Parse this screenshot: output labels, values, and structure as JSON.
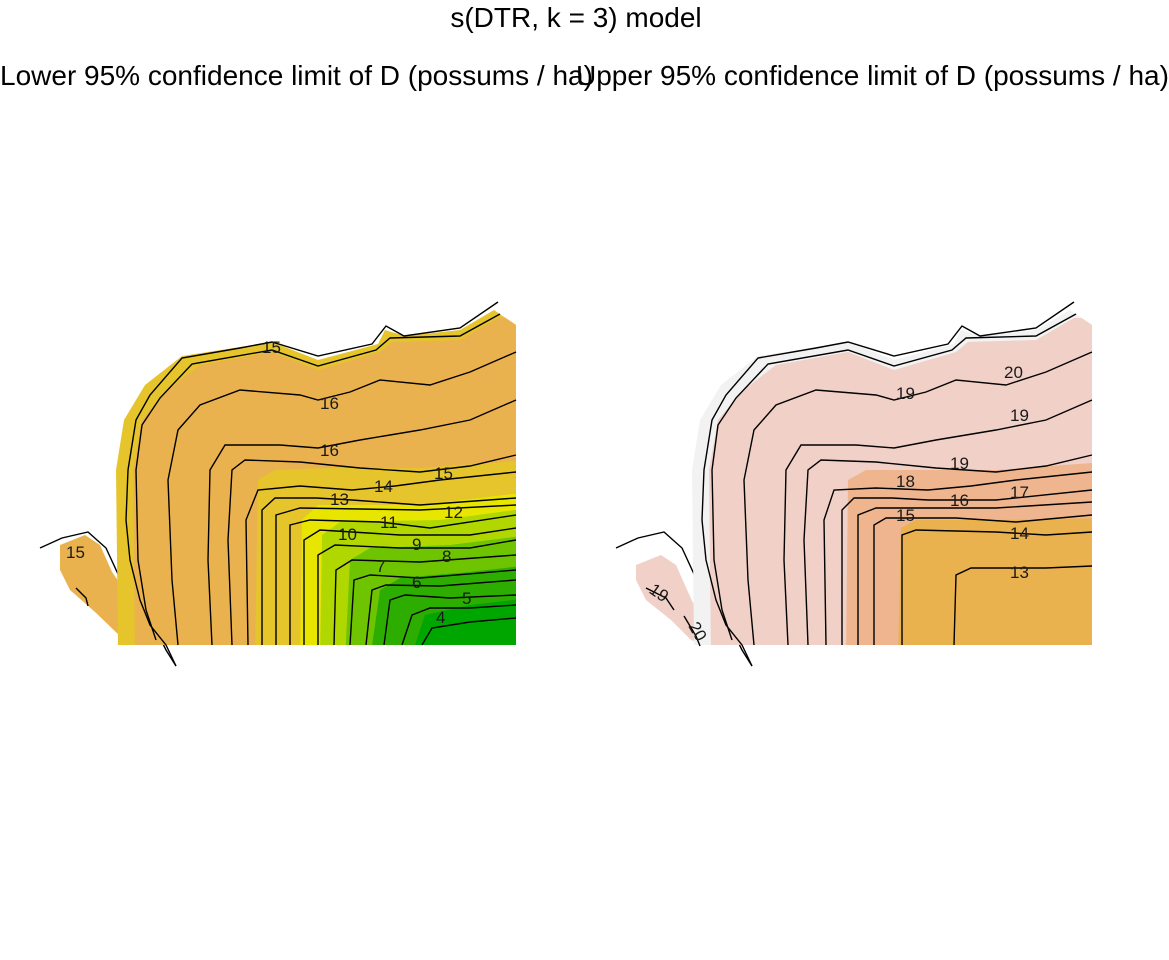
{
  "figure_title": "s(DTR, k = 3) model",
  "colors": {
    "level_21": "#f2f2f2",
    "level_20": "#f0d0c7",
    "level_18": "#efb58e",
    "level_16": "#eab24f",
    "level_14": "#e6c42c",
    "level_12": "#e8e600",
    "level_10": "#b0d800",
    "level_8": "#6ec400",
    "level_6": "#2cad00",
    "level_4": "#00a600"
  },
  "chart_data": [
    {
      "type": "heatmap",
      "subtype": "filled contour map",
      "title": "Lower 95% confidence limit of D (possums / ha)",
      "contour_labels": [
        "15",
        "15",
        "16",
        "16",
        "15",
        "14",
        "13",
        "12",
        "11",
        "10",
        "9",
        "8",
        "7",
        "6",
        "5",
        "4"
      ],
      "value_range": [
        4,
        16
      ]
    },
    {
      "type": "heatmap",
      "subtype": "filled contour map",
      "title": "Upper 95% confidence limit of D (possums / ha)",
      "contour_labels": [
        "20",
        "19",
        "19",
        "19",
        "18",
        "17",
        "16",
        "15",
        "14",
        "13",
        "19",
        "20"
      ],
      "value_range": [
        13,
        20
      ]
    }
  ]
}
